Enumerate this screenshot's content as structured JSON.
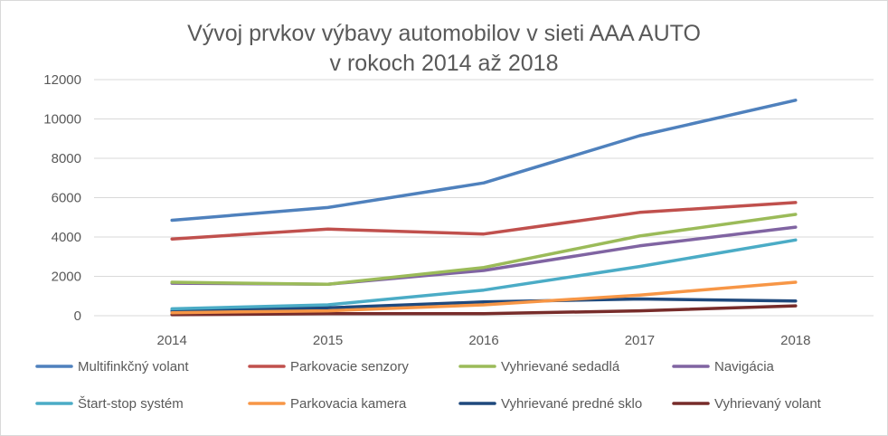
{
  "chart_data": {
    "type": "line",
    "title_line1": "Vývoj prvkov výbavy  automobilov v sieti AAA AUTO",
    "title_line2": "v rokoch 2014 až 2018",
    "categories": [
      "2014",
      "2015",
      "2016",
      "2017",
      "2018"
    ],
    "ylim": [
      0,
      12000
    ],
    "yticks": [
      "0",
      "2000",
      "4000",
      "6000",
      "8000",
      "10000",
      "12000"
    ],
    "grid": true,
    "legend_position": "bottom",
    "series": [
      {
        "name": "Multifinkčný volant",
        "color": "#4f81bd",
        "values": [
          4850,
          5500,
          6750,
          9150,
          10950
        ]
      },
      {
        "name": "Parkovacie senzory",
        "color": "#c0504d",
        "values": [
          3900,
          4400,
          4150,
          5250,
          5750
        ]
      },
      {
        "name": "Vyhrievané sedadlá",
        "color": "#9bbb59",
        "values": [
          1700,
          1600,
          2450,
          4050,
          5150
        ]
      },
      {
        "name": "Navigácia",
        "color": "#8064a2",
        "values": [
          1650,
          1600,
          2300,
          3550,
          4500
        ]
      },
      {
        "name": "Štart-stop systém",
        "color": "#4bacc6",
        "values": [
          350,
          550,
          1300,
          2500,
          3850
        ]
      },
      {
        "name": "Parkovacia kamera",
        "color": "#f79646",
        "values": [
          150,
          250,
          550,
          1050,
          1700
        ]
      },
      {
        "name": "Vyhrievané predné sklo",
        "color": "#1f497d",
        "values": [
          250,
          400,
          700,
          850,
          750
        ]
      },
      {
        "name": "Vyhrievaný volant",
        "color": "#772c2a",
        "values": [
          50,
          100,
          100,
          250,
          500
        ]
      }
    ]
  }
}
